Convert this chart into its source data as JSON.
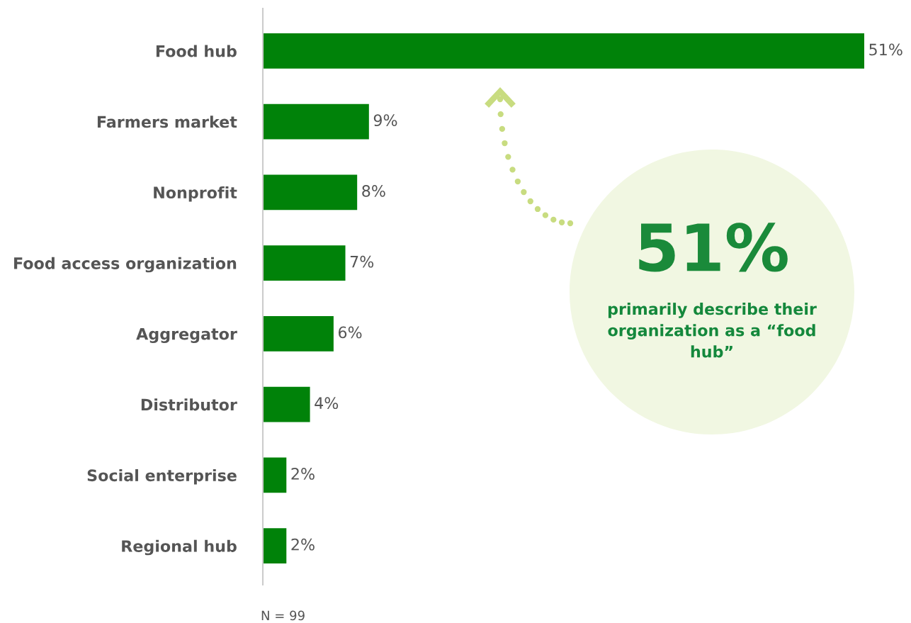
{
  "chart_data": {
    "type": "bar",
    "orientation": "horizontal",
    "categories": [
      "Food hub",
      "Farmers market",
      "Nonprofit",
      "Food access organization",
      "Aggregator",
      "Distributor",
      "Social enterprise",
      "Regional hub"
    ],
    "values": [
      51,
      9,
      8,
      7,
      6,
      4,
      2,
      2
    ],
    "value_labels": [
      "51%",
      "9%",
      "8%",
      "7%",
      "6%",
      "4%",
      "2%",
      "2%"
    ],
    "color": "#008209",
    "annotations": [
      "51%",
      "primarily describe their organization as a “food hub”",
      "N = 99"
    ]
  }
}
